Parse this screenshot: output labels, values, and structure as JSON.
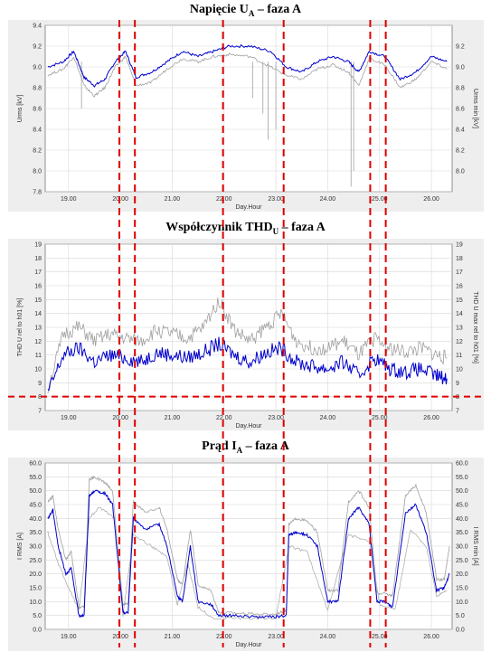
{
  "chart_data": [
    {
      "type": "line",
      "title_main": "Napięcie U",
      "title_sub": "A",
      "title_rest": " – faza A",
      "ylabel_left": "Urms [kV]",
      "ylabel_right": "Urms min [kV]",
      "xlabel": "Day.Hour",
      "ylim": [
        7.8,
        9.4
      ],
      "xlim": [
        18.55,
        26.4
      ],
      "yticks": [
        "7.8",
        "8.0",
        "8.2",
        "8.4",
        "8.6",
        "8.8",
        "9.0",
        "9.2",
        "9.4"
      ],
      "yticks_right": [
        "8.0",
        "8.2",
        "8.4",
        "8.6",
        "8.8",
        "9.0",
        "9.2"
      ],
      "xticks": [
        "19.00",
        "20.00",
        "21.00",
        "22.00",
        "23.00",
        "24.00",
        "25.00",
        "26.00"
      ],
      "series": [
        {
          "color": "#0000cc",
          "x": [
            18.6,
            18.9,
            19.1,
            19.3,
            19.5,
            19.7,
            19.9,
            20.1,
            20.3,
            20.6,
            20.9,
            21.2,
            21.5,
            21.8,
            22.1,
            22.5,
            22.9,
            23.2,
            23.5,
            23.8,
            24.1,
            24.4,
            24.6,
            24.8,
            25.1,
            25.4,
            25.7,
            26.0,
            26.3
          ],
          "y": [
            9.0,
            9.05,
            9.15,
            8.9,
            8.82,
            8.88,
            9.05,
            9.15,
            8.9,
            8.95,
            9.05,
            9.15,
            9.1,
            9.15,
            9.2,
            9.2,
            9.15,
            9.0,
            8.95,
            9.05,
            9.1,
            9.05,
            8.95,
            9.15,
            9.1,
            8.88,
            8.95,
            9.1,
            9.05
          ]
        },
        {
          "color": "#a0a0a0",
          "x": [
            18.6,
            18.9,
            19.1,
            19.3,
            19.5,
            19.7,
            19.9,
            20.1,
            20.3,
            20.6,
            20.9,
            21.2,
            21.5,
            21.8,
            22.1,
            22.5,
            22.9,
            23.2,
            23.5,
            23.8,
            24.1,
            24.4,
            24.6,
            24.8,
            25.1,
            25.4,
            25.7,
            26.0,
            26.3
          ],
          "y": [
            8.92,
            8.98,
            9.1,
            8.82,
            8.72,
            8.8,
            9.0,
            9.1,
            8.82,
            8.85,
            8.98,
            9.08,
            9.05,
            9.1,
            9.12,
            9.1,
            9.0,
            8.92,
            8.88,
            8.98,
            9.02,
            8.95,
            8.82,
            9.08,
            9.02,
            8.8,
            8.88,
            9.05,
            8.98
          ],
          "spikes": [
            {
              "x": 22.55,
              "y": 8.7
            },
            {
              "x": 22.75,
              "y": 8.55
            },
            {
              "x": 22.85,
              "y": 8.3
            },
            {
              "x": 23.0,
              "y": 8.4
            },
            {
              "x": 24.45,
              "y": 7.85
            },
            {
              "x": 24.5,
              "y": 8.0
            },
            {
              "x": 19.25,
              "y": 8.6
            }
          ]
        }
      ]
    },
    {
      "type": "line",
      "title_main": "Współczynnik THD",
      "title_sub": "U",
      "title_rest": " – faza A",
      "ylabel_left": "THD U rel to h01 [%]",
      "ylabel_right": "THD U max rel to h01 [%]",
      "xlabel": "Day.Hour",
      "ylim": [
        7,
        19
      ],
      "xlim": [
        18.55,
        26.4
      ],
      "yticks": [
        "7",
        "8",
        "9",
        "10",
        "11",
        "12",
        "13",
        "14",
        "15",
        "16",
        "17",
        "18",
        "19"
      ],
      "yticks_right": [
        "7",
        "8",
        "9",
        "10",
        "11",
        "12",
        "13",
        "14",
        "15",
        "16",
        "17",
        "18",
        "19"
      ],
      "xticks": [
        "19.00",
        "20.00",
        "21.00",
        "22.00",
        "23.00",
        "24.00",
        "25.00",
        "26.00"
      ],
      "threshold": 8,
      "series": [
        {
          "color": "#0000cc",
          "x": [
            18.6,
            18.9,
            19.2,
            19.5,
            19.8,
            20.1,
            20.4,
            20.7,
            21.0,
            21.3,
            21.6,
            21.9,
            22.2,
            22.5,
            22.8,
            23.1,
            23.4,
            23.7,
            24.0,
            24.3,
            24.6,
            24.9,
            25.2,
            25.5,
            25.8,
            26.1,
            26.3
          ],
          "y": [
            8.3,
            11,
            11.5,
            10.5,
            11,
            10.8,
            10.5,
            11.2,
            11,
            10.8,
            11.2,
            11.8,
            11,
            10.5,
            11.2,
            11.5,
            10.5,
            10.2,
            10,
            10.5,
            9.5,
            10.8,
            10,
            9.8,
            10,
            9.5,
            9.3
          ]
        },
        {
          "color": "#a0a0a0",
          "x": [
            18.6,
            18.9,
            19.2,
            19.5,
            19.8,
            20.1,
            20.4,
            20.7,
            21.0,
            21.3,
            21.6,
            21.9,
            22.2,
            22.5,
            22.8,
            23.1,
            23.4,
            23.7,
            24.0,
            24.3,
            24.6,
            24.9,
            25.2,
            25.5,
            25.8,
            26.1,
            26.3
          ],
          "y": [
            8.5,
            12.5,
            13,
            12,
            12.5,
            12.2,
            12,
            12.8,
            12.5,
            12.2,
            13,
            15,
            12.8,
            12,
            13,
            14,
            12,
            11.5,
            11.5,
            12,
            11,
            12.2,
            11.5,
            11.2,
            11.5,
            11,
            10.8
          ]
        }
      ]
    },
    {
      "type": "line",
      "title_main": "Prąd I",
      "title_sub": "A",
      "title_rest": " – faza A",
      "ylabel_left": "I RMS [A]",
      "ylabel_right": "I RMS min [A]",
      "xlabel": "Day.Hour",
      "ylim": [
        0,
        60
      ],
      "xlim": [
        18.55,
        26.4
      ],
      "yticks": [
        "0.0",
        "5.0",
        "10.0",
        "15.0",
        "20.0",
        "25.0",
        "30.0",
        "35.0",
        "40.0",
        "45.0",
        "50.0",
        "55.0",
        "60.0"
      ],
      "yticks_right": [
        "0.0",
        "5.0",
        "10.0",
        "15.0",
        "20.0",
        "25.0",
        "30.0",
        "35.0",
        "40.0",
        "45.0",
        "50.0",
        "55.0",
        "60.0"
      ],
      "xticks": [
        "19.00",
        "20.00",
        "21.00",
        "22.00",
        "23.00",
        "24.00",
        "25.00",
        "26.00"
      ],
      "series": [
        {
          "color": "#0000cc",
          "x": [
            18.6,
            18.7,
            18.8,
            18.95,
            19.05,
            19.2,
            19.3,
            19.4,
            19.5,
            19.7,
            19.85,
            20.05,
            20.15,
            20.25,
            20.5,
            20.75,
            20.9,
            21.1,
            21.2,
            21.35,
            21.5,
            21.75,
            21.9,
            22.2,
            22.6,
            23.0,
            23.2,
            23.25,
            23.4,
            23.6,
            23.8,
            24.0,
            24.2,
            24.4,
            24.6,
            24.8,
            24.95,
            25.1,
            25.25,
            25.5,
            25.7,
            25.9,
            26.1,
            26.25,
            26.35
          ],
          "y": [
            40,
            43,
            30,
            20,
            22,
            5,
            5,
            48,
            50,
            49,
            45,
            6,
            6,
            40,
            36,
            38,
            30,
            12,
            10,
            30,
            10,
            9,
            5,
            5,
            4.5,
            4.5,
            5,
            34,
            35,
            34,
            30,
            10,
            10,
            40,
            44,
            38,
            10,
            10,
            8,
            42,
            45,
            35,
            14,
            15,
            20
          ]
        },
        {
          "color": "#a0a0a0",
          "x": [
            18.6,
            18.7,
            18.8,
            18.95,
            19.05,
            19.2,
            19.3,
            19.4,
            19.5,
            19.7,
            19.85,
            20.05,
            20.15,
            20.25,
            20.5,
            20.75,
            20.9,
            21.1,
            21.2,
            21.35,
            21.5,
            21.75,
            21.9,
            22.2,
            22.6,
            23.0,
            23.2,
            23.25,
            23.4,
            23.6,
            23.8,
            24.0,
            24.2,
            24.4,
            24.6,
            24.8,
            24.95,
            25.1,
            25.25,
            25.5,
            25.7,
            25.9,
            26.1,
            26.25,
            26.35
          ],
          "y": [
            46,
            48,
            36,
            25,
            28,
            8,
            8,
            54,
            55,
            53,
            50,
            9,
            9,
            46,
            42,
            44,
            36,
            18,
            16,
            36,
            16,
            14,
            6,
            6,
            5.5,
            5.5,
            7,
            38,
            40,
            39,
            35,
            14,
            14,
            46,
            50,
            44,
            13,
            13,
            12,
            48,
            52,
            42,
            18,
            18,
            30
          ]
        },
        {
          "color": "#b0b0b0",
          "x": [
            18.6,
            18.8,
            19.0,
            19.2,
            19.4,
            19.6,
            19.9,
            20.05,
            20.25,
            20.6,
            20.9,
            21.1,
            21.3,
            21.5,
            21.8,
            22.4,
            23.0,
            23.25,
            23.6,
            24.0,
            24.4,
            24.8,
            25.0,
            25.3,
            25.6,
            25.9,
            26.1,
            26.3
          ],
          "y": [
            35,
            24,
            15,
            7,
            40,
            44,
            40,
            5,
            34,
            30,
            26,
            9,
            24,
            8,
            4,
            4,
            4,
            30,
            28,
            7,
            34,
            32,
            9,
            7,
            36,
            30,
            12,
            14
          ]
        }
      ]
    }
  ],
  "event_lines": [
    19.98,
    20.28,
    21.98,
    23.15,
    24.82,
    25.12
  ],
  "event_color": "#e00000"
}
